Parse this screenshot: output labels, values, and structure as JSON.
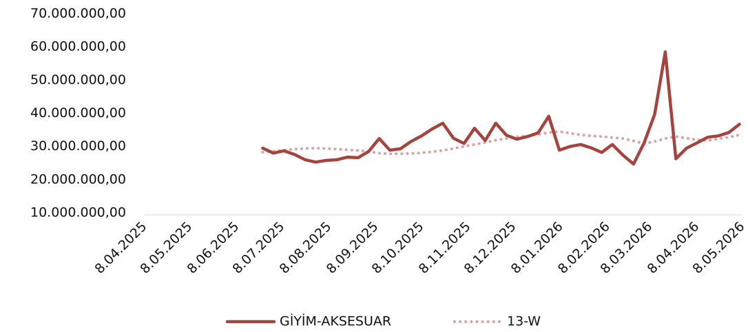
{
  "chart_data": {
    "type": "line",
    "x": [
      "2025-06-25",
      "2025-07-02",
      "2025-07-09",
      "2025-07-16",
      "2025-07-23",
      "2025-07-30",
      "2025-08-06",
      "2025-08-13",
      "2025-08-20",
      "2025-08-27",
      "2025-09-03",
      "2025-09-10",
      "2025-09-17",
      "2025-09-24",
      "2025-10-01",
      "2025-10-08",
      "2025-10-15",
      "2025-10-22",
      "2025-10-29",
      "2025-11-05",
      "2025-11-12",
      "2025-11-19",
      "2025-11-26",
      "2025-12-03",
      "2025-12-10",
      "2025-12-17",
      "2025-12-24",
      "2025-12-31",
      "2026-01-07",
      "2026-01-14",
      "2026-01-21",
      "2026-01-28",
      "2026-02-04",
      "2026-02-11",
      "2026-02-18",
      "2026-02-25",
      "2026-03-04",
      "2026-03-11",
      "2026-03-18",
      "2026-03-25",
      "2026-04-01",
      "2026-04-08",
      "2026-04-15",
      "2026-04-22",
      "2026-04-29",
      "2026-05-06"
    ],
    "series": [
      {
        "name": "GİYİM-AKSESUAR",
        "color": "#a5433f",
        "style": "solid",
        "values": [
          29500000,
          28000000,
          28700000,
          27600000,
          26000000,
          25300000,
          25800000,
          26000000,
          26800000,
          26600000,
          28500000,
          32400000,
          28900000,
          29300000,
          31500000,
          33200000,
          35300000,
          37000000,
          32500000,
          30900000,
          35500000,
          31800000,
          37000000,
          33400000,
          32200000,
          33000000,
          34100000,
          39100000,
          28900000,
          30000000,
          30600000,
          29600000,
          28200000,
          30600000,
          27400000,
          24700000,
          31100000,
          39700000,
          58500000,
          26300000,
          29500000,
          31100000,
          32800000,
          33200000,
          34200000,
          36700000
        ]
      },
      {
        "name": "13-W",
        "color": "#d9a1a1",
        "style": "dotted",
        "values": [
          28300000,
          28600000,
          28900000,
          29200000,
          29400000,
          29500000,
          29400000,
          29200000,
          29000000,
          28800000,
          28500000,
          28000000,
          27800000,
          27800000,
          27900000,
          28100000,
          28400000,
          28800000,
          29400000,
          30000000,
          30600000,
          31200000,
          31900000,
          32400000,
          32900000,
          33200000,
          33600000,
          34200000,
          34500000,
          34000000,
          33500000,
          33200000,
          33000000,
          32700000,
          32400000,
          31700000,
          30800000,
          31500000,
          32400000,
          33000000,
          32500000,
          32000000,
          31800000,
          32300000,
          32800000,
          33500000
        ]
      }
    ],
    "xlim": [
      "2025-04-08",
      "2026-05-08"
    ],
    "xticks": [
      {
        "value": "2025-04-08",
        "label": "8.04.2025"
      },
      {
        "value": "2025-05-08",
        "label": "8.05.2025"
      },
      {
        "value": "2025-06-08",
        "label": "8.06.2025"
      },
      {
        "value": "2025-07-08",
        "label": "8.07.2025"
      },
      {
        "value": "2025-08-08",
        "label": "8.08.2025"
      },
      {
        "value": "2025-09-08",
        "label": "8.09.2025"
      },
      {
        "value": "2025-10-08",
        "label": "8.10.2025"
      },
      {
        "value": "2025-11-08",
        "label": "8.11.2025"
      },
      {
        "value": "2025-12-08",
        "label": "8.12.2025"
      },
      {
        "value": "2026-01-08",
        "label": "8.01.2026"
      },
      {
        "value": "2026-02-08",
        "label": "8.02.2026"
      },
      {
        "value": "2026-03-08",
        "label": "8.03.2026"
      },
      {
        "value": "2026-04-08",
        "label": "8.04.2026"
      },
      {
        "value": "2026-05-08",
        "label": "8.05.2026"
      }
    ],
    "ylim": [
      10000000,
      70000000
    ],
    "yticks": [
      {
        "value": 10000000,
        "label": "10.000.000,00"
      },
      {
        "value": 20000000,
        "label": "20.000.000,00"
      },
      {
        "value": 30000000,
        "label": "30.000.000,00"
      },
      {
        "value": 40000000,
        "label": "40.000.000,00"
      },
      {
        "value": 50000000,
        "label": "50.000.000,00"
      },
      {
        "value": 60000000,
        "label": "60.000.000,00"
      },
      {
        "value": 70000000,
        "label": "70.000.000,00"
      }
    ],
    "grid": false,
    "legend": "bottom"
  }
}
